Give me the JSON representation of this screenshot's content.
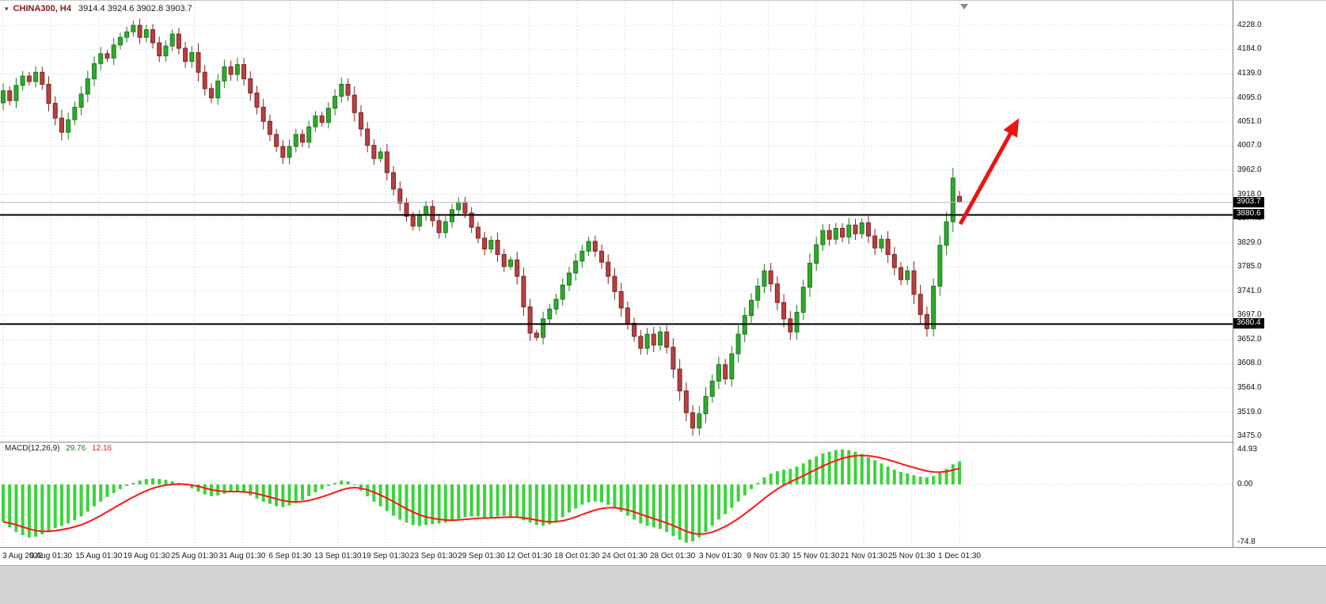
{
  "header": {
    "symbol": "CHINA300, H4",
    "ohlc": "3914.4 3924.6 3902.8 3903.7"
  },
  "macd_header": {
    "label": "MACD(12,26,9)",
    "macd_value": "29.76",
    "signal_value": "12.16"
  },
  "price_tags": {
    "bid": "3903.7",
    "level1": "3880.6",
    "level2": "3680.4"
  },
  "colors": {
    "up_candle": "#2fa82f",
    "up_edge": "#1c7a1c",
    "down_candle": "#b84040",
    "down_edge": "#7e2222",
    "macd_bar": "#3bd33b",
    "macd_signal": "#ff1414",
    "arrow": "#ee1212",
    "grid": "#c9c9c9",
    "level_line": "#000000",
    "bid_line": "#b6c2ce",
    "tag_bg": "#000000",
    "tag_text": "#ffffff",
    "symbol_text": "#7a1a1a"
  },
  "chart_data": {
    "type": "candlestick",
    "title": "CHINA300 H4 price chart with MACD(12,26,9)",
    "symbol": "CHINA300",
    "timeframe": "H4",
    "last_bar_ohlc_text": "O 3914.4  H 3924.6  L 3902.8  C 3903.7",
    "y_axis": {
      "labels": [
        "4228.0",
        "4184.0",
        "4139.0",
        "4095.0",
        "4051.0",
        "4007.0",
        "3962.0",
        "3918.0",
        "3874.0",
        "3829.0",
        "3785.0",
        "3741.0",
        "3697.0",
        "3652.0",
        "3608.0",
        "3564.0",
        "3519.0",
        "3475.0"
      ],
      "range": [
        3475.0,
        4228.0
      ]
    },
    "x_axis": {
      "labels": [
        "3 Aug 2022",
        "9 Aug 01:30",
        "15 Aug 01:30",
        "19 Aug 01:30",
        "25 Aug 01:30",
        "31 Aug 01:30",
        "6 Sep 01:30",
        "13 Sep 01:30",
        "19 Sep 01:30",
        "23 Sep 01:30",
        "29 Sep 01:30",
        "12 Oct 01:30",
        "18 Oct 01:30",
        "24 Oct 01:30",
        "28 Oct 01:30",
        "3 Nov 01:30",
        "9 Nov 01:30",
        "15 Nov 01:30",
        "21 Nov 01:30",
        "25 Nov 01:30",
        "1 Dec 01:30"
      ]
    },
    "first_open": 4086,
    "closes": [
      4108,
      4090,
      4118,
      4135,
      4125,
      4142,
      4120,
      4085,
      4058,
      4032,
      4055,
      4078,
      4102,
      4130,
      4158,
      4176,
      4168,
      4192,
      4206,
      4216,
      4228,
      4206,
      4220,
      4196,
      4172,
      4190,
      4212,
      4186,
      4162,
      4178,
      4142,
      4112,
      4095,
      4126,
      4152,
      4138,
      4156,
      4130,
      4104,
      4078,
      4052,
      4028,
      4006,
      3986,
      4006,
      4028,
      4014,
      4042,
      4062,
      4050,
      4076,
      4098,
      4120,
      4100,
      4068,
      4038,
      4008,
      3984,
      3996,
      3958,
      3928,
      3902,
      3878,
      3860,
      3880,
      3896,
      3870,
      3848,
      3868,
      3890,
      3904,
      3884,
      3858,
      3838,
      3818,
      3834,
      3808,
      3786,
      3798,
      3768,
      3712,
      3664,
      3656,
      3690,
      3708,
      3726,
      3752,
      3774,
      3796,
      3814,
      3832,
      3814,
      3794,
      3768,
      3740,
      3710,
      3682,
      3658,
      3636,
      3662,
      3642,
      3666,
      3638,
      3598,
      3558,
      3518,
      3490,
      3516,
      3548,
      3576,
      3606,
      3580,
      3626,
      3662,
      3696,
      3724,
      3750,
      3778,
      3754,
      3720,
      3690,
      3666,
      3702,
      3748,
      3792,
      3826,
      3852,
      3836,
      3856,
      3840,
      3862,
      3846,
      3866,
      3842,
      3820,
      3836,
      3808,
      3784,
      3762,
      3778,
      3735,
      3698,
      3672,
      3750,
      3825,
      3868,
      3948,
      3903.7
    ],
    "last_candle_ohlc": [
      3914.4,
      3924.6,
      3902.8,
      3903.7
    ],
    "horizontal_lines": [
      3880.6,
      3680.4
    ],
    "bid_price": 3903.7,
    "annotations": [
      {
        "type": "arrow",
        "direction": "up-right",
        "color": "#ee1212"
      }
    ],
    "macd": {
      "type": "macd",
      "params": "12,26,9",
      "current_macd": 29.76,
      "current_signal": 12.16,
      "axis_labels": {
        "top": "44.93",
        "zero": "0.00",
        "bottom": "-74.8"
      },
      "range": [
        -74.8,
        44.93
      ],
      "histogram": [
        -48,
        -55,
        -61,
        -65,
        -68,
        -67,
        -64,
        -60,
        -56,
        -53,
        -50,
        -46,
        -41,
        -35,
        -28,
        -22,
        -16,
        -11,
        -6,
        -2,
        2,
        5,
        7,
        8,
        7,
        6,
        4,
        2,
        -1,
        -5,
        -9,
        -13,
        -15,
        -14,
        -12,
        -10,
        -9,
        -11,
        -14,
        -18,
        -22,
        -25,
        -28,
        -29,
        -27,
        -24,
        -20,
        -15,
        -10,
        -6,
        -2,
        2,
        5,
        4,
        -1,
        -8,
        -15,
        -22,
        -28,
        -34,
        -40,
        -45,
        -49,
        -52,
        -53,
        -52,
        -51,
        -50,
        -49,
        -47,
        -44,
        -42,
        -41,
        -41,
        -42,
        -42,
        -41,
        -40,
        -41,
        -43,
        -46,
        -49,
        -52,
        -53,
        -51,
        -47,
        -42,
        -36,
        -31,
        -26,
        -23,
        -22,
        -23,
        -26,
        -30,
        -35,
        -40,
        -45,
        -50,
        -53,
        -55,
        -57,
        -61,
        -66,
        -71,
        -74.8,
        -73,
        -68,
        -61,
        -53,
        -45,
        -38,
        -30,
        -22,
        -14,
        -6,
        2,
        9,
        14,
        17,
        19,
        20,
        23,
        27,
        32,
        36,
        40,
        42,
        44,
        44.93,
        44,
        42,
        39,
        35,
        31,
        27,
        23,
        19,
        16,
        14,
        12,
        10,
        9,
        11,
        15,
        20,
        26,
        29.76
      ],
      "signal_smoothing": 9
    }
  }
}
